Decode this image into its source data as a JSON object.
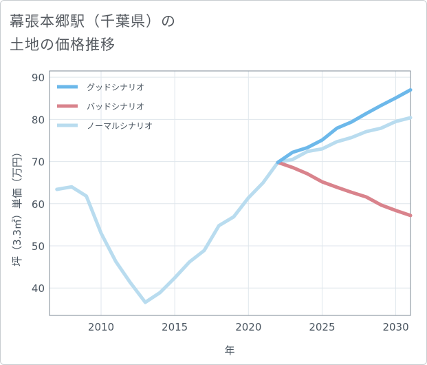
{
  "title": {
    "line1": "幕張本郷駅（千葉県）の",
    "line2": "土地の価格推移"
  },
  "chart_data": {
    "type": "line",
    "title": "幕張本郷駅（千葉県）の土地の価格推移",
    "xlabel": "年",
    "ylabel": "坪（3.3㎡）単価（万円）",
    "xlim": [
      2006.5,
      2031
    ],
    "ylim": [
      33.5,
      91.5
    ],
    "xticks": [
      2010,
      2015,
      2020,
      2025,
      2030
    ],
    "yticks": [
      40,
      50,
      60,
      70,
      80,
      90
    ],
    "grid": true,
    "legend_position": "top-left",
    "series": [
      {
        "name": "グッドシナリオ",
        "color": "#6cb8ea",
        "x": [
          2022,
          2023,
          2024,
          2025,
          2026,
          2027,
          2028,
          2029,
          2030,
          2031
        ],
        "y": [
          69.8,
          72.2,
          73.3,
          75.1,
          77.9,
          79.4,
          81.4,
          83.3,
          85.1,
          87.0
        ]
      },
      {
        "name": "バッドシナリオ",
        "color": "#d9838c",
        "x": [
          2022,
          2023,
          2024,
          2025,
          2026,
          2027,
          2028,
          2029,
          2030,
          2031
        ],
        "y": [
          69.8,
          68.6,
          67.1,
          65.2,
          63.9,
          62.7,
          61.6,
          59.7,
          58.4,
          57.2
        ]
      },
      {
        "name": "ノーマルシナリオ",
        "color": "#b9dcef",
        "x": [
          2007,
          2008,
          2009,
          2010,
          2011,
          2012,
          2013,
          2014,
          2015,
          2016,
          2017,
          2018,
          2019,
          2020,
          2021,
          2022,
          2023,
          2024,
          2025,
          2026,
          2027,
          2028,
          2029,
          2030,
          2031
        ],
        "y": [
          63.4,
          64.0,
          61.8,
          53.0,
          46.3,
          41.2,
          36.6,
          38.9,
          42.4,
          46.2,
          48.9,
          54.8,
          56.9,
          61.4,
          65.0,
          69.8,
          70.5,
          72.4,
          73.0,
          74.7,
          75.7,
          77.1,
          77.9,
          79.5,
          80.4
        ]
      }
    ]
  }
}
